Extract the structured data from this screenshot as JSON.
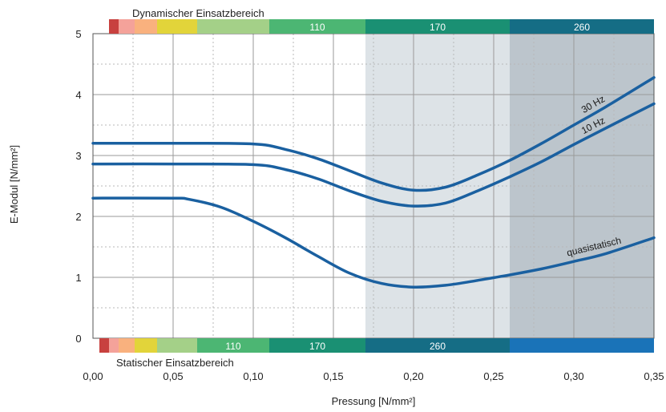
{
  "chart_data": {
    "type": "line",
    "xlabel": "Pressung [N/mm²]",
    "ylabel": "E-Modul [N/mm²]",
    "xlim": [
      0.0,
      0.35
    ],
    "ylim": [
      0,
      5
    ],
    "x_ticks": [
      "0,00",
      "0,05",
      "0,10",
      "0,15",
      "0,20",
      "0,25",
      "0,30",
      "0,35"
    ],
    "y_ticks": [
      "0",
      "1",
      "2",
      "3",
      "4",
      "5"
    ],
    "grid": true,
    "background_regions": [
      {
        "from": 0.17,
        "to": 0.26,
        "color": "#dde3e7"
      },
      {
        "from": 0.26,
        "to": 0.35,
        "color": "#bcc5cc"
      }
    ],
    "series": [
      {
        "name": "30 Hz",
        "color": "#1a60a0",
        "points": [
          [
            0.0,
            3.2
          ],
          [
            0.05,
            3.2
          ],
          [
            0.1,
            3.19
          ],
          [
            0.12,
            3.1
          ],
          [
            0.14,
            2.95
          ],
          [
            0.16,
            2.75
          ],
          [
            0.18,
            2.55
          ],
          [
            0.2,
            2.43
          ],
          [
            0.22,
            2.48
          ],
          [
            0.24,
            2.68
          ],
          [
            0.26,
            2.92
          ],
          [
            0.28,
            3.2
          ],
          [
            0.3,
            3.5
          ],
          [
            0.32,
            3.8
          ],
          [
            0.35,
            4.28
          ]
        ]
      },
      {
        "name": "10 Hz",
        "color": "#1a60a0",
        "points": [
          [
            0.0,
            2.86
          ],
          [
            0.05,
            2.86
          ],
          [
            0.1,
            2.85
          ],
          [
            0.12,
            2.77
          ],
          [
            0.14,
            2.62
          ],
          [
            0.16,
            2.42
          ],
          [
            0.18,
            2.25
          ],
          [
            0.2,
            2.17
          ],
          [
            0.22,
            2.22
          ],
          [
            0.24,
            2.42
          ],
          [
            0.26,
            2.65
          ],
          [
            0.28,
            2.9
          ],
          [
            0.3,
            3.18
          ],
          [
            0.32,
            3.45
          ],
          [
            0.35,
            3.85
          ]
        ]
      },
      {
        "name": "quasistatisch",
        "color": "#1a60a0",
        "points": [
          [
            0.0,
            2.3
          ],
          [
            0.05,
            2.3
          ],
          [
            0.06,
            2.28
          ],
          [
            0.08,
            2.15
          ],
          [
            0.1,
            1.92
          ],
          [
            0.12,
            1.65
          ],
          [
            0.14,
            1.35
          ],
          [
            0.16,
            1.07
          ],
          [
            0.18,
            0.9
          ],
          [
            0.2,
            0.84
          ],
          [
            0.22,
            0.87
          ],
          [
            0.24,
            0.95
          ],
          [
            0.26,
            1.04
          ],
          [
            0.28,
            1.14
          ],
          [
            0.3,
            1.26
          ],
          [
            0.32,
            1.39
          ],
          [
            0.35,
            1.65
          ]
        ]
      }
    ],
    "top_band": {
      "title": "Dynamischer Einsatzbereich",
      "segments": [
        {
          "from": 0.01,
          "to": 0.016,
          "color": "#c8413f",
          "label": ""
        },
        {
          "from": 0.016,
          "to": 0.026,
          "color": "#f4a29a",
          "label": ""
        },
        {
          "from": 0.026,
          "to": 0.04,
          "color": "#f9b17e",
          "label": ""
        },
        {
          "from": 0.04,
          "to": 0.065,
          "color": "#e2d43a",
          "label": ""
        },
        {
          "from": 0.065,
          "to": 0.11,
          "color": "#a4d088",
          "label": ""
        },
        {
          "from": 0.11,
          "to": 0.17,
          "color": "#4cb673",
          "label": "110"
        },
        {
          "from": 0.17,
          "to": 0.26,
          "color": "#1a9073",
          "label": "170"
        },
        {
          "from": 0.26,
          "to": 0.35,
          "color": "#156d85",
          "label": "260"
        }
      ]
    },
    "bottom_band": {
      "title": "Statischer Einsatzbereich",
      "segments": [
        {
          "from": 0.004,
          "to": 0.01,
          "color": "#c8413f",
          "label": ""
        },
        {
          "from": 0.01,
          "to": 0.016,
          "color": "#f4a29a",
          "label": ""
        },
        {
          "from": 0.016,
          "to": 0.026,
          "color": "#f9b17e",
          "label": ""
        },
        {
          "from": 0.026,
          "to": 0.04,
          "color": "#e2d43a",
          "label": ""
        },
        {
          "from": 0.04,
          "to": 0.065,
          "color": "#a4d088",
          "label": ""
        },
        {
          "from": 0.065,
          "to": 0.11,
          "color": "#4cb673",
          "label": "110"
        },
        {
          "from": 0.11,
          "to": 0.17,
          "color": "#1a9073",
          "label": "170"
        },
        {
          "from": 0.17,
          "to": 0.26,
          "color": "#156d85",
          "label": "260"
        },
        {
          "from": 0.26,
          "to": 0.35,
          "color": "#1a73b8",
          "label": ""
        }
      ]
    }
  }
}
